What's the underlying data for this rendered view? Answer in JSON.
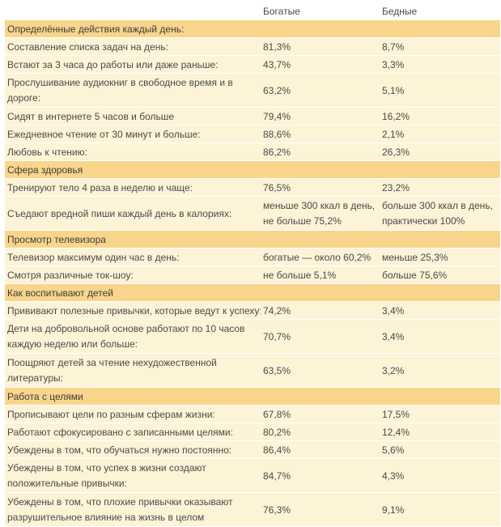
{
  "header": {
    "rich": "Богатые",
    "poor": "Бедные"
  },
  "sections": [
    {
      "title": "Определённые действия каждый день:",
      "rows": [
        {
          "label": "Составление списка задач на день:",
          "rich": "81,3%",
          "poor": "8,7%"
        },
        {
          "label": "Встают за 3 часа до работы или даже раньше:",
          "rich": "43,7%",
          "poor": "3,3%"
        },
        {
          "label": "Прослушивание аудиокниг в свободное время и в дороге:",
          "rich": "63,2%",
          "poor": "5,1%",
          "tall": true
        },
        {
          "label": "Сидят в интернете 5 часов и больше",
          "rich": "79,4%",
          "poor": "16,2%"
        },
        {
          "label": "Ежедневное чтение от 30 минут и больше:",
          "rich": "88,6%",
          "poor": "2,1%"
        },
        {
          "label": "Любовь к чтению:",
          "rich": "86,2%",
          "poor": "26,3%"
        }
      ]
    },
    {
      "title": "Сфера здоровья",
      "rows": [
        {
          "label": "Тренируют тело 4 раза в неделю и чаще:",
          "rich": "76,5%",
          "poor": "23,2%"
        },
        {
          "label": "Съедают вредной пиши каждый день в калориях:",
          "rich": "меньше 300 ккал в день, не больше 75,2%",
          "poor": "больше 300 ккал в день, практически 100%",
          "tall": true
        }
      ]
    },
    {
      "title": "Просмотр телевизора",
      "rows": [
        {
          "label": "Телевизор максимум один час в день:",
          "rich": "богатые — около 60,2%",
          "poor": "меньше 25,3%"
        },
        {
          "label": "Смотря различные ток-шоу:",
          "rich": "не больше 5,1%",
          "poor": "больше 75,6%"
        }
      ]
    },
    {
      "title": "Как воспитывают детей",
      "rows": [
        {
          "label": "Прививают полезные привычки, которые ведут к успеху:",
          "rich": "74,2%",
          "poor": "3,4%"
        },
        {
          "label": "Дети на добровольной основе работают по 10 часов каждую неделю или больше:",
          "rich": "70,7%",
          "poor": "3,4%",
          "tall": true
        },
        {
          "label": "Поощряют детей за чтение нехудожественной литературы:",
          "rich": "63,5%",
          "poor": "3,2%",
          "tall": true
        }
      ]
    },
    {
      "title": "Работа с целями",
      "rows": [
        {
          "label": "Прописывают цели по разным сферам жизни:",
          "rich": "67,8%",
          "poor": "17,5%"
        },
        {
          "label": "Работают сфокусировано с записанными целями:",
          "rich": "80,2%",
          "poor": "12,4%"
        },
        {
          "label": "Убеждены в том, что обучаться нужно постоянно:",
          "rich": "86,4%",
          "poor": "5,6%"
        },
        {
          "label": "Убеждены в том, что успех в жизни создают положительные привычки:",
          "rich": "84,7%",
          "poor": "4,3%",
          "tall": true
        },
        {
          "label": "Убеждены в том, что плохие привычки оказывают разрушительное влияние на жизнь в целом",
          "rich": "76,3%",
          "poor": "9,1%",
          "tall": true
        }
      ]
    }
  ]
}
